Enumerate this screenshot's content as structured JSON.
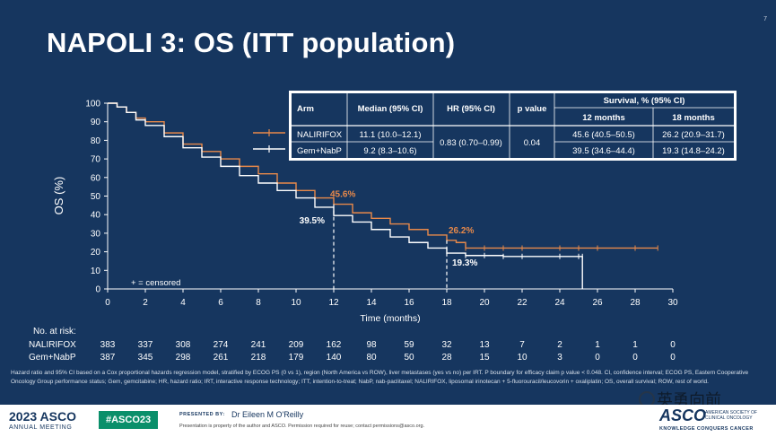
{
  "slide": {
    "number": "7",
    "title": "NAPOLI 3: OS (ITT population)"
  },
  "table": {
    "headers": [
      "Arm",
      "Median (95% CI)",
      "HR (95% CI)",
      "p value",
      "Survival, % (95% CI)"
    ],
    "subheaders": [
      "12 months",
      "18 months"
    ],
    "rows": [
      {
        "arm": "NALIRIFOX",
        "median": "11.1 (10.0–12.1)",
        "m12": "45.6 (40.5–50.5)",
        "m18": "26.2 (20.9–31.7)"
      },
      {
        "arm": "Gem+NabP",
        "median": "9.2 (8.3–10.6)",
        "m12": "39.5 (34.6–44.4)",
        "m18": "19.3 (14.8–24.2)"
      }
    ],
    "hr": "0.83 (0.70–0.99)",
    "p": "0.04"
  },
  "chart_data": {
    "type": "line",
    "xlabel": "Time (months)",
    "ylabel": "OS (%)",
    "xlim": [
      0,
      30
    ],
    "ylim": [
      0,
      100
    ],
    "xticks": [
      0,
      2,
      4,
      6,
      8,
      10,
      12,
      14,
      16,
      18,
      20,
      22,
      24,
      26,
      28,
      30
    ],
    "yticks": [
      0,
      10,
      20,
      30,
      40,
      50,
      60,
      70,
      80,
      90,
      100
    ],
    "series": [
      {
        "name": "NALIRIFOX",
        "color": "#e8894a",
        "x": [
          0,
          0.5,
          1,
          1.5,
          2,
          3,
          4,
          5,
          6,
          7,
          8,
          9,
          10,
          11,
          12,
          13,
          14,
          15,
          16,
          17,
          18,
          18.5,
          19,
          20,
          21,
          22,
          24,
          25,
          26,
          28,
          29.2
        ],
        "y": [
          100,
          98,
          95,
          92,
          90,
          84,
          78,
          74,
          70,
          66,
          62,
          57,
          53,
          49,
          45.6,
          41,
          38,
          35,
          32,
          29,
          26.2,
          25,
          22,
          22,
          22,
          22,
          22,
          22,
          22,
          22,
          22
        ]
      },
      {
        "name": "Gem+NabP",
        "color": "#ffffff",
        "x": [
          0,
          0.5,
          1,
          1.5,
          2,
          3,
          4,
          5,
          6,
          7,
          8,
          9,
          10,
          11,
          12,
          13,
          14,
          15,
          16,
          17,
          18,
          19,
          20,
          21,
          22,
          24,
          25,
          25.2,
          25.2
        ],
        "y": [
          100,
          98,
          95,
          91,
          88,
          82,
          76,
          71,
          66,
          61,
          57,
          53,
          49,
          44,
          39.5,
          36,
          32,
          28,
          25,
          22,
          19.3,
          18,
          18,
          17.5,
          17.5,
          17.5,
          17.5,
          17.5,
          0
        ]
      }
    ],
    "annotations": [
      {
        "text": "45.6%",
        "x": 12,
        "y": 45.6,
        "color": "#e8894a"
      },
      {
        "text": "39.5%",
        "x": 12,
        "y": 39.5,
        "color": "#ffffff"
      },
      {
        "text": "26.2%",
        "x": 18,
        "y": 26.2,
        "color": "#e8894a"
      },
      {
        "text": "19.3%",
        "x": 18,
        "y": 19.3,
        "color": "#ffffff"
      }
    ],
    "censored_note": "+ = censored",
    "at_risk": {
      "label": "No. at risk:",
      "times": [
        0,
        2,
        4,
        6,
        8,
        10,
        12,
        14,
        16,
        18,
        20,
        22,
        24,
        26,
        28,
        30
      ],
      "rows": [
        {
          "name": "NALIRIFOX",
          "values": [
            383,
            337,
            308,
            274,
            241,
            209,
            162,
            98,
            59,
            32,
            13,
            7,
            2,
            1,
            1,
            0
          ]
        },
        {
          "name": "Gem+NabP",
          "values": [
            387,
            345,
            298,
            261,
            218,
            179,
            140,
            80,
            50,
            28,
            15,
            10,
            3,
            0,
            0,
            0
          ]
        }
      ]
    }
  },
  "footnote": "Hazard ratio and 95% CI based on a Cox proportional hazards regression model, stratified by ECOG PS (0 vs 1), region (North America vs ROW), liver metastases (yes vs no) per IRT. P boundary for efficacy claim p value < 0.048. CI, confidence interval; ECOG PS, Eastern Cooperative Oncology Group performance status; Gem, gemcitabine; HR, hazard ratio; IRT, interactive response technology; ITT, intention-to-treat; NabP, nab-paclitaxel; NALIRIFOX, liposomal irinotecan + 5-fluorouracil/leucovorin + oxaliplatin; OS, overall survival; ROW, rest of world.",
  "footer": {
    "year": "2023 ASCO",
    "meeting": "ANNUAL MEETING",
    "hashtag": "#ASCO23",
    "presented_by_label": "PRESENTED BY:",
    "presenter": "Dr Eileen M O'Reilly",
    "permission": "Presentation is property of the author and ASCO. Permission required for reuse; contact permissions@asco.org.",
    "logo": "ASCO",
    "logo_sub": "AMERICAN SOCIETY OF CLINICAL ONCOLOGY",
    "logo_tag": "KNOWLEDGE CONQUERS CANCER"
  },
  "watermark": "英勇向前"
}
